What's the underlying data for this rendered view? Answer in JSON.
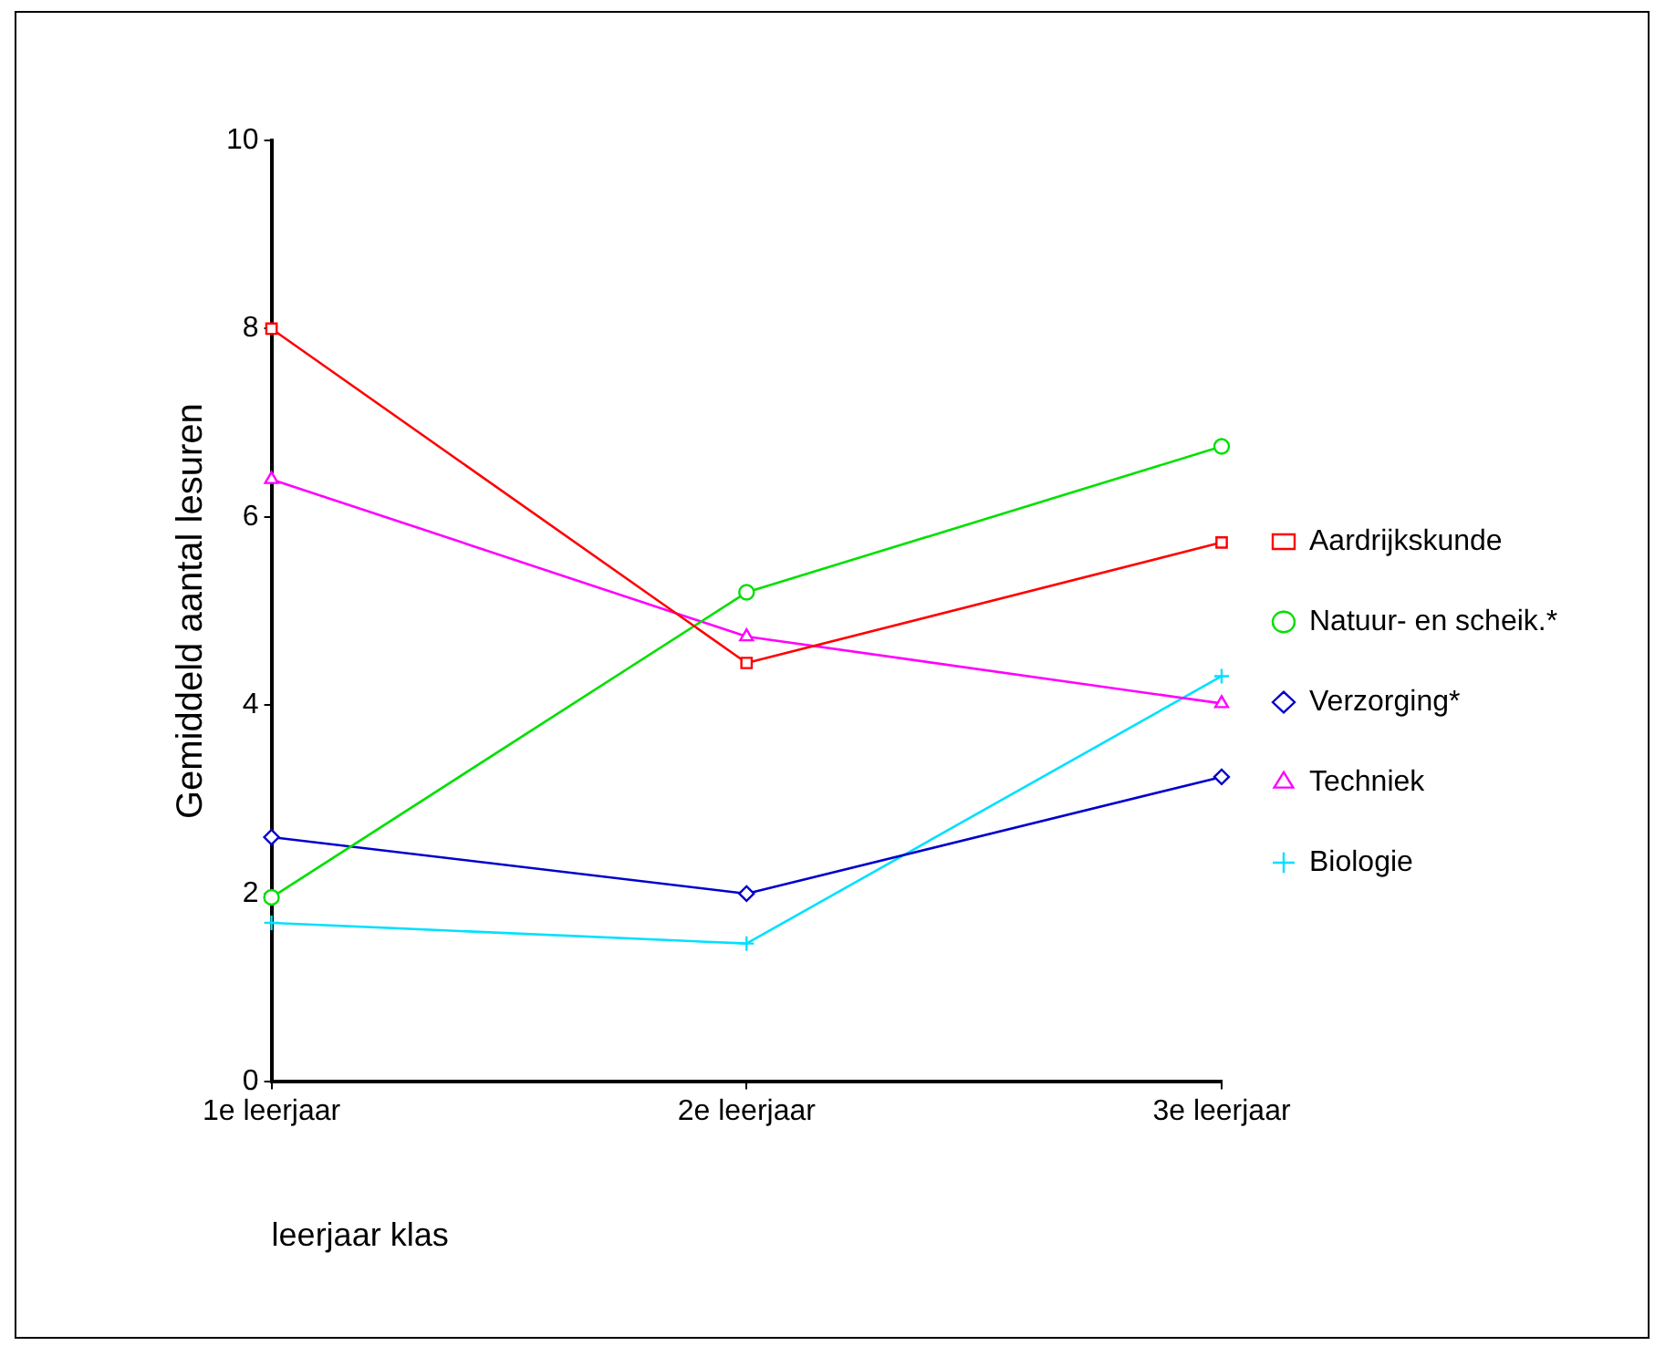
{
  "chart_data": {
    "type": "line",
    "xlabel": "leerjaar klas",
    "ylabel": "Gemiddeld aantal lesuren",
    "categories": [
      "1e leerjaar",
      "2e leerjaar",
      "3e leerjaar"
    ],
    "series": [
      {
        "name": "Aardrijkskunde",
        "color": "#ff0000",
        "marker": "square",
        "values": [
          8.0,
          4.45,
          5.73
        ]
      },
      {
        "name": "Natuur- en scheik.*",
        "color": "#00e000",
        "marker": "circle",
        "values": [
          1.96,
          5.2,
          6.75
        ]
      },
      {
        "name": "Verzorging*",
        "color": "#0000cc",
        "marker": "diamond",
        "values": [
          2.6,
          2.0,
          3.24
        ]
      },
      {
        "name": "Techniek",
        "color": "#ff00ff",
        "marker": "triangle",
        "values": [
          6.4,
          4.73,
          4.02
        ]
      },
      {
        "name": "Biologie",
        "color": "#00e0ff",
        "marker": "cross",
        "values": [
          1.69,
          1.47,
          4.31
        ]
      }
    ],
    "ylim": [
      0,
      10
    ],
    "yticks": [
      0,
      2,
      4,
      6,
      8,
      10
    ],
    "grid": false,
    "legend": "right"
  }
}
